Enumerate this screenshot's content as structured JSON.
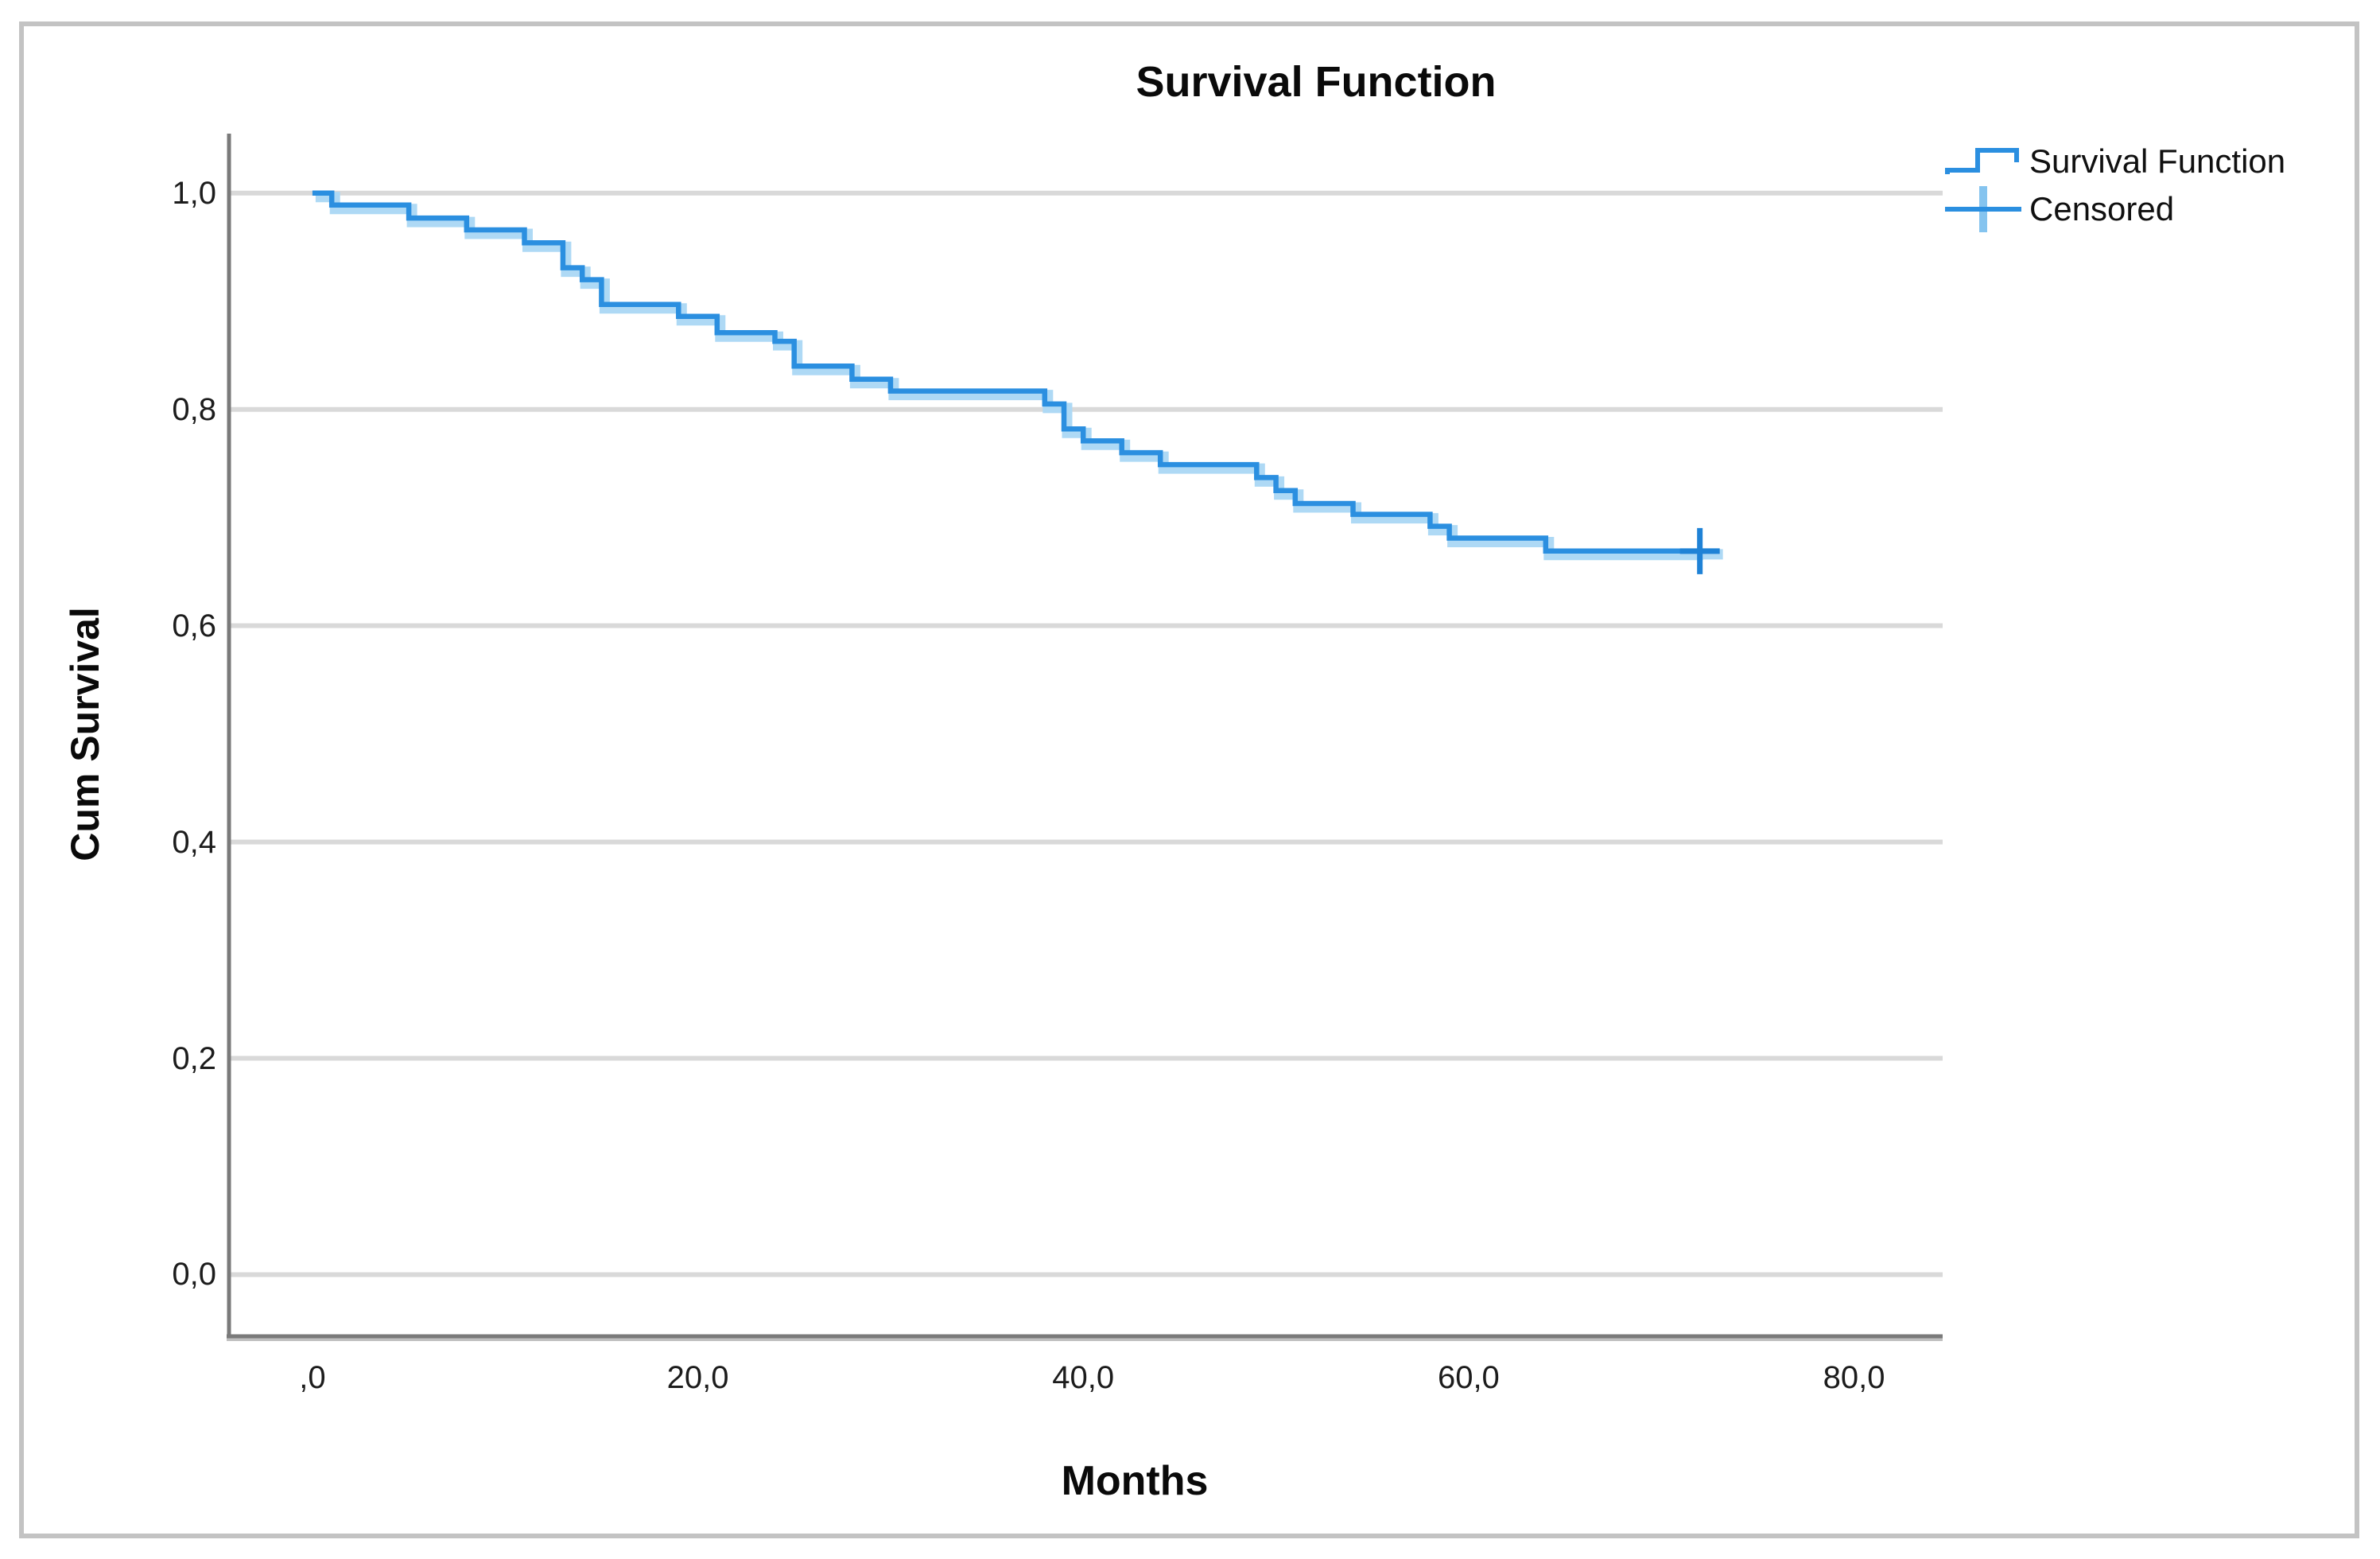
{
  "figure": {
    "background": "#ffffff",
    "border_color": "#c3c3c3",
    "axis_color": "#7a7a7a",
    "axis_shadow_color": "#bfbfbf",
    "gridline_color": "#d9d9d9",
    "text_color": "#0a0a0a"
  },
  "chart_data": {
    "type": "line",
    "subtype": "kaplan-meier-step",
    "title": "Survival Function",
    "xlabel": "Months",
    "ylabel": "Cum Survival",
    "xlim": [
      -4.33,
      84.6
    ],
    "ylim": [
      -0.057,
      1.055
    ],
    "grid": "horizontal-only",
    "x_ticks": [
      {
        "value": 0,
        "label": ",0"
      },
      {
        "value": 20,
        "label": "20,0"
      },
      {
        "value": 40,
        "label": "40,0"
      },
      {
        "value": 60,
        "label": "60,0"
      },
      {
        "value": 80,
        "label": "80,0"
      }
    ],
    "y_ticks": [
      {
        "value": 0.0,
        "label": "0,0"
      },
      {
        "value": 0.2,
        "label": "0,2"
      },
      {
        "value": 0.4,
        "label": "0,4"
      },
      {
        "value": 0.6,
        "label": "0,6"
      },
      {
        "value": 0.8,
        "label": "0,8"
      },
      {
        "value": 1.0,
        "label": "1,0"
      }
    ],
    "legend": {
      "position": "top-right",
      "entries": [
        {
          "label": "Survival Function",
          "marker": "step-line"
        },
        {
          "label": "Censored",
          "marker": "plus"
        }
      ]
    },
    "series": [
      {
        "name": "Survival Function",
        "color": "#2b8fe0",
        "halo_color": "#aed9f5",
        "end_time": 72,
        "steps": [
          [
            0,
            1.0
          ],
          [
            1,
            0.989
          ],
          [
            5,
            0.977
          ],
          [
            8,
            0.966
          ],
          [
            11,
            0.954
          ],
          [
            13,
            0.931
          ],
          [
            14,
            0.92
          ],
          [
            15,
            0.897
          ],
          [
            19,
            0.886
          ],
          [
            21,
            0.871
          ],
          [
            24,
            0.863
          ],
          [
            25,
            0.84
          ],
          [
            28,
            0.828
          ],
          [
            30,
            0.817
          ],
          [
            38,
            0.805
          ],
          [
            39,
            0.782
          ],
          [
            40,
            0.771
          ],
          [
            42,
            0.76
          ],
          [
            44,
            0.749
          ],
          [
            49,
            0.737
          ],
          [
            50,
            0.725
          ],
          [
            51,
            0.713
          ],
          [
            54,
            0.703
          ],
          [
            58,
            0.692
          ],
          [
            59,
            0.681
          ],
          [
            64,
            0.669
          ]
        ]
      }
    ],
    "censored_points": [
      {
        "t": 72,
        "s": 0.669
      }
    ],
    "censored_color": "#1f82d6",
    "censored_cross_vertical_color": "#85c4ef"
  }
}
